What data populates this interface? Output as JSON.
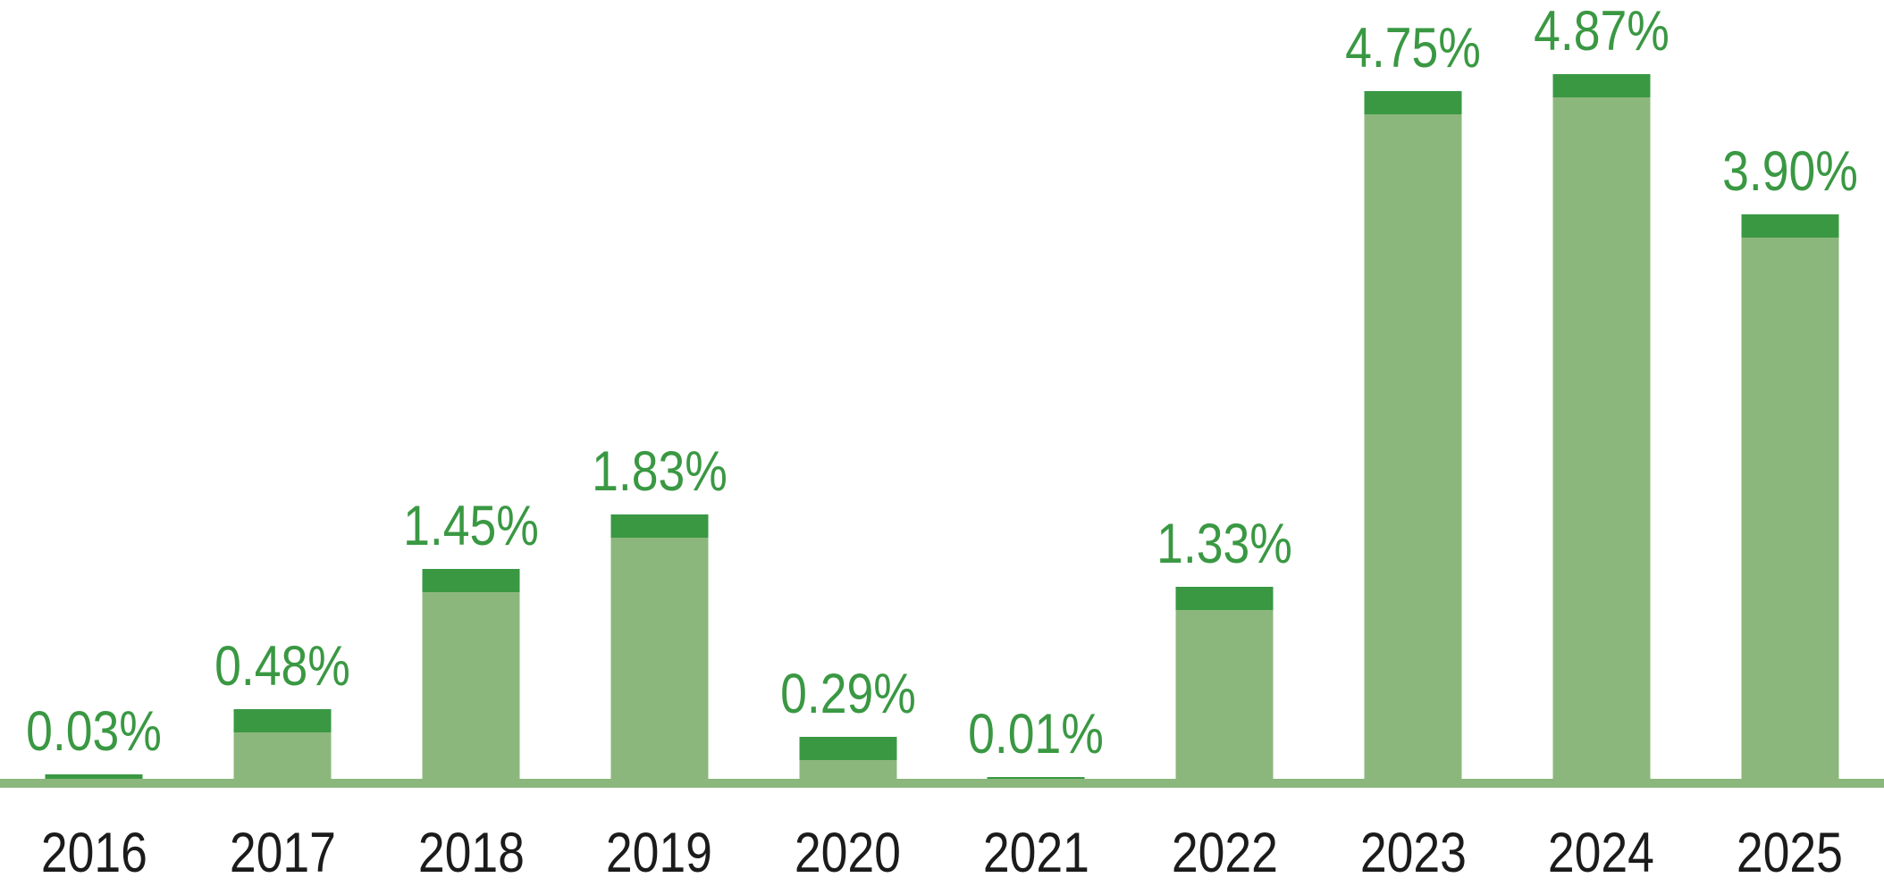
{
  "chart_data": {
    "type": "bar",
    "title": "",
    "xlabel": "",
    "ylabel": "",
    "categories": [
      "2016",
      "2017",
      "2018",
      "2019",
      "2020",
      "2021",
      "2022",
      "2023",
      "2024",
      "2025"
    ],
    "values": [
      0.03,
      0.48,
      1.45,
      1.83,
      0.29,
      0.01,
      1.33,
      4.75,
      4.87,
      3.9
    ],
    "value_labels": [
      "0.03%",
      "0.48%",
      "1.45%",
      "1.83%",
      "0.29%",
      "0.01%",
      "1.33%",
      "4.75%",
      "4.87%",
      "3.90%"
    ],
    "unit": "%",
    "ylim": [
      0,
      5.4
    ],
    "grid": false,
    "legend": null,
    "y_axis_visible": false,
    "x_axis_style": "thick-band",
    "colors": {
      "bar_body": "#8BB77C",
      "bar_cap": "#3A9843",
      "value_label": "#3A9843",
      "axis_band": "#8BB77C",
      "year_label": "#1B1B1B",
      "background": "#FFFFFF"
    }
  }
}
